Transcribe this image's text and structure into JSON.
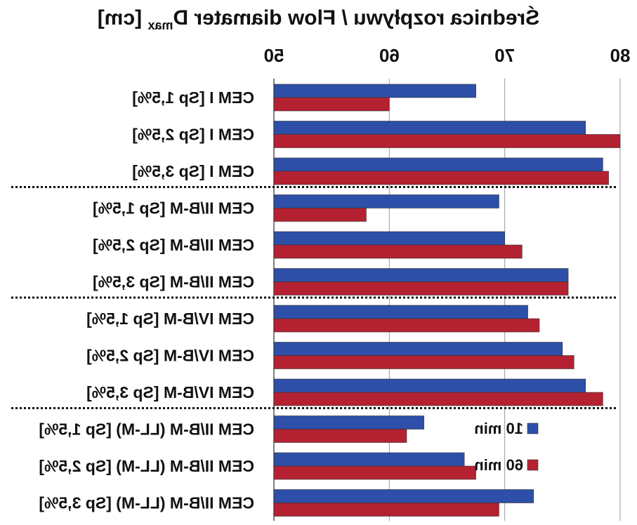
{
  "chart_data": {
    "type": "bar",
    "orientation": "horizontal",
    "mirrored": true,
    "title": "Średnica rozpływu / Flow diamater D",
    "title_subscript": "max",
    "title_unit": "[cm]",
    "xlim": [
      50,
      80
    ],
    "ticks": [
      50,
      60,
      70,
      80
    ],
    "grid": true,
    "legend_position": "bottom-right",
    "categories": [
      "CEM I [Sp 1,5%]",
      "CEM I [Sp 2,5%]",
      "CEM I [Sp 3,5%]",
      "CEM II/B-M [Sp 1,5%]",
      "CEM II/B-M [Sp 2,5%]",
      "CEM II/B-M [Sp 3,5%]",
      "CEM IV/B-M [Sp 1,5%]",
      "CEM IV/B-M [Sp 2,5%]",
      "CEM IV/B-M [Sp 3,5%]",
      "CEM II/B-M (LL-M) [Sp 1,5%]",
      "CEM II/B-M (LL-M) [Sp 2,5%]",
      "CEM II/B-M (LL-M) [Sp 3,5%]"
    ],
    "group_separators_after": [
      2,
      5,
      8
    ],
    "series": [
      {
        "name": "10 min",
        "color": "#2E4FA8",
        "values": [
          67.5,
          77.0,
          78.5,
          69.5,
          70.0,
          75.5,
          72.0,
          75.0,
          77.0,
          63.0,
          66.5,
          72.5
        ]
      },
      {
        "name": "60 min",
        "color": "#B42232",
        "values": [
          60.0,
          80.0,
          79.0,
          58.0,
          71.5,
          75.5,
          73.0,
          76.0,
          78.5,
          61.5,
          67.5,
          69.5
        ]
      }
    ]
  }
}
